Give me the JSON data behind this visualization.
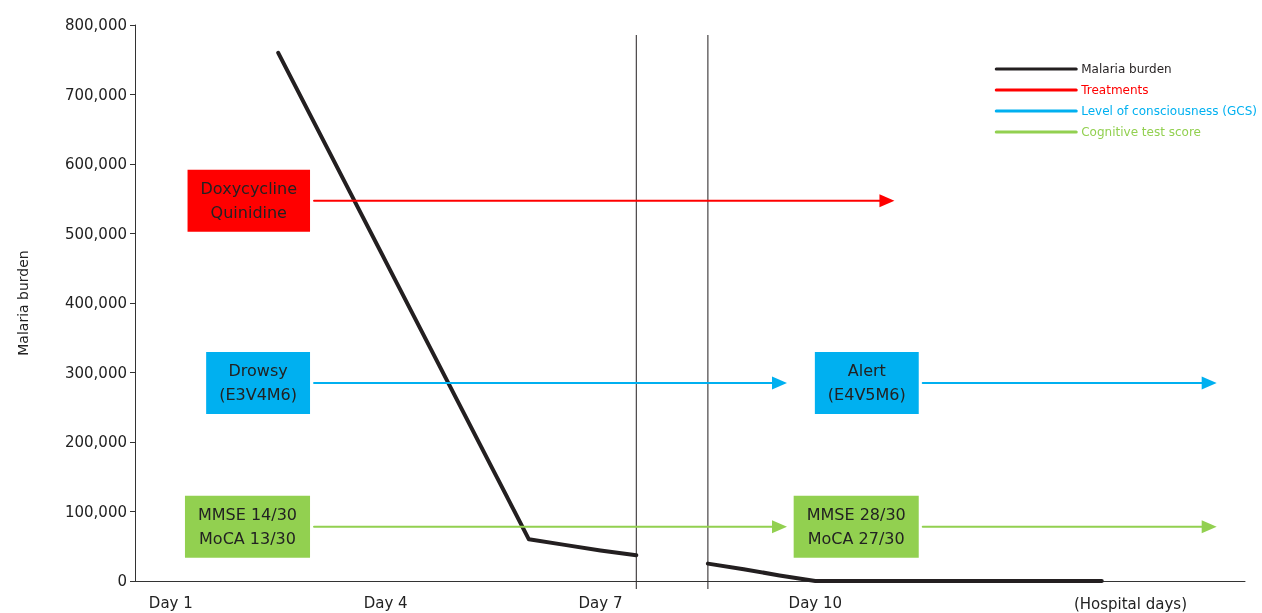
{
  "chart_data": {
    "type": "line",
    "ylabel": "Malaria burden",
    "xlabel": "(Hospital days)",
    "categories": [
      null,
      "Day 1",
      null,
      null,
      null,
      null,
      null,
      "Day 4",
      null,
      null,
      null,
      null,
      null,
      "Day 7",
      null,
      null,
      null,
      null,
      null,
      "Day 10",
      null,
      null,
      null,
      null,
      null,
      null,
      null,
      null,
      null,
      null,
      null,
      null
    ],
    "ylim": [
      0,
      800000
    ],
    "yticks": [
      {
        "value": 0,
        "label": "0"
      },
      {
        "value": 100000,
        "label": "100,000"
      },
      {
        "value": 200000,
        "label": "200,000"
      },
      {
        "value": 300000,
        "label": "300,000"
      },
      {
        "value": 400000,
        "label": "400,000"
      },
      {
        "value": 500000,
        "label": "500,000"
      },
      {
        "value": 600000,
        "label": "600,000"
      },
      {
        "value": 700000,
        "label": "700,000"
      },
      {
        "value": 800000,
        "label": "800,000"
      }
    ],
    "series": [
      {
        "name": "Malaria burden",
        "color": "#231f20",
        "marker": "none",
        "values": [
          null,
          null,
          null,
          null,
          760000,
          660000,
          560000,
          460000,
          360000,
          260000,
          160000,
          60000,
          52000,
          44000,
          37000,
          null,
          25000,
          17000,
          8000,
          0,
          0,
          0,
          0,
          0,
          0,
          0,
          0,
          0,
          null,
          null,
          null,
          null
        ]
      },
      {
        "name": "Treatments",
        "color": "#ff0000",
        "values": [
          null,
          null,
          null,
          null,
          null,
          547000,
          547000,
          547000,
          547000,
          547000,
          547000,
          547000,
          547000,
          547000,
          547000,
          547000,
          547000,
          547000,
          547000,
          547000,
          547000,
          547000,
          null,
          null,
          null,
          null,
          null,
          null,
          null,
          null,
          null,
          null
        ],
        "value_labels": [
          null,
          null,
          null,
          null,
          null,
          "Doxycycline\nQuinidine",
          null,
          null,
          null,
          null,
          null,
          null,
          null,
          null,
          null,
          null,
          null,
          null,
          null,
          null,
          null,
          null,
          null,
          null,
          null,
          null,
          null,
          null,
          null,
          null,
          null,
          null
        ]
      },
      {
        "name": "Level of consciousness (GCS)",
        "color": "#00b0f0",
        "values": [
          null,
          null,
          null,
          null,
          null,
          285000,
          285000,
          285000,
          285000,
          285000,
          285000,
          285000,
          285000,
          285000,
          285000,
          285000,
          285000,
          285000,
          285000,
          null,
          null,
          null,
          285000,
          285000,
          285000,
          285000,
          285000,
          285000,
          285000,
          285000,
          285000,
          null
        ],
        "value_labels": [
          null,
          null,
          null,
          null,
          null,
          "Drowsy\n(E3V4M6)",
          null,
          null,
          null,
          null,
          null,
          null,
          null,
          null,
          null,
          null,
          null,
          null,
          null,
          null,
          null,
          null,
          "Alert\n(E4V5M6)",
          null,
          null,
          null,
          null,
          null,
          null,
          null,
          null,
          null
        ]
      },
      {
        "name": "Cognitive test score",
        "color": "#92d050",
        "values": [
          null,
          null,
          null,
          null,
          null,
          78000,
          78000,
          78000,
          78000,
          78000,
          78000,
          78000,
          78000,
          78000,
          78000,
          78000,
          78000,
          78000,
          78000,
          null,
          null,
          null,
          78000,
          78000,
          78000,
          78000,
          78000,
          78000,
          78000,
          78000,
          78000,
          null
        ],
        "value_labels": [
          null,
          null,
          null,
          null,
          null,
          "MMSE 14/30\nMoCA 13/30",
          null,
          null,
          null,
          null,
          null,
          null,
          null,
          null,
          null,
          null,
          null,
          null,
          null,
          null,
          null,
          null,
          "MMSE 28/30\nMoCA 27/30",
          null,
          null,
          null,
          null,
          null,
          null,
          null,
          null,
          null
        ]
      }
    ],
    "legend": "top right"
  }
}
